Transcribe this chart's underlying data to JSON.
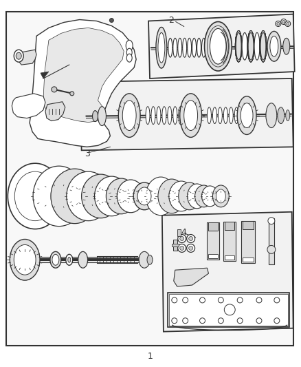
{
  "background_color": "#ffffff",
  "line_color": "#333333",
  "fill_light": "#f0f0f0",
  "fill_mid": "#e0e0e0",
  "fill_dark": "#cccccc",
  "label_1": "1",
  "label_2": "2",
  "label_3": "3",
  "label_4": "4"
}
